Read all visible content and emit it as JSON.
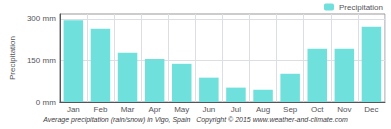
{
  "chart_data": {
    "type": "bar",
    "title": "Average precipitation (rain/snow) in Vigo, Spain   Copyright © 2015 www.weather-and-climate.com",
    "categories": [
      "Jan",
      "Feb",
      "Mar",
      "Apr",
      "May",
      "Jun",
      "Jul",
      "Aug",
      "Sep",
      "Oct",
      "Nov",
      "Dec"
    ],
    "series": [
      {
        "name": "Precipitation",
        "color": "#6FE0DC",
        "values": [
          295,
          265,
          178,
          155,
          138,
          88,
          52,
          44,
          102,
          192,
          192,
          272
        ]
      }
    ],
    "ylabel": "Precipitation",
    "ylim": [
      0,
      318
    ],
    "yticks": [
      {
        "value": 0,
        "label": "0 mm"
      },
      {
        "value": 150,
        "label": "150 mm"
      },
      {
        "value": 300,
        "label": "300 mm"
      }
    ],
    "grid": true,
    "legend": "upper right"
  }
}
